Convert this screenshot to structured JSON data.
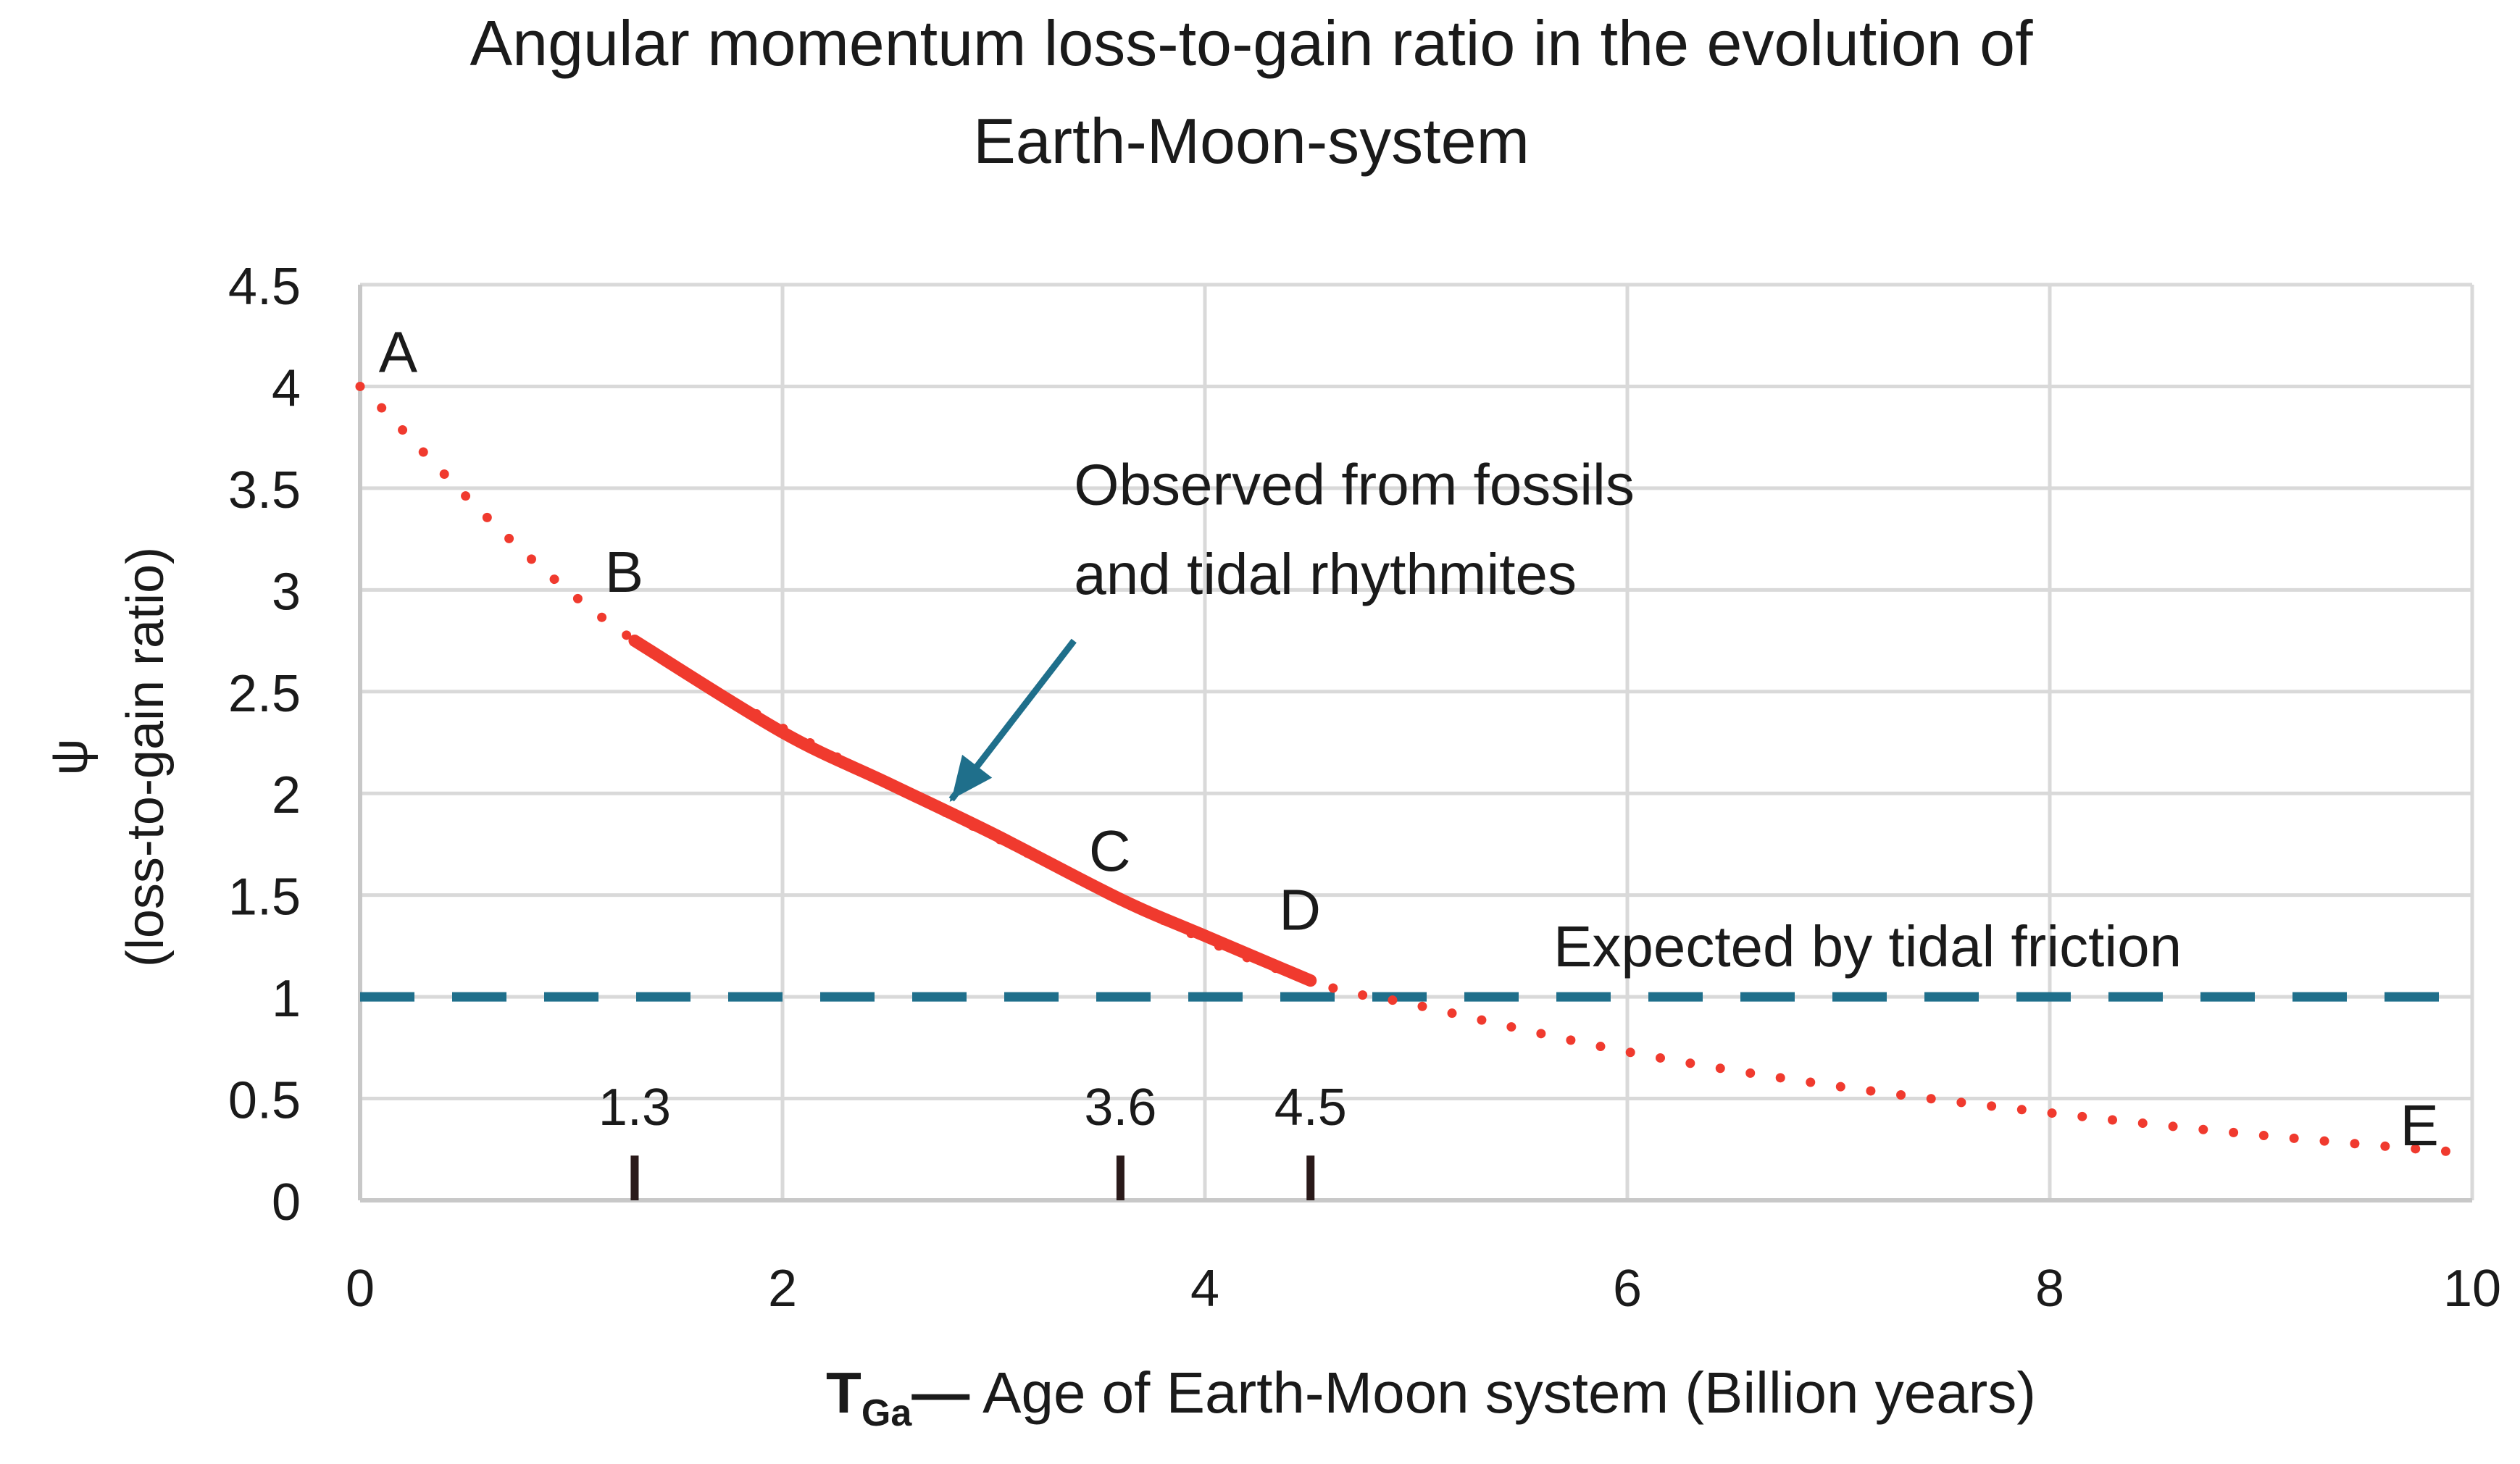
{
  "chart_data": {
    "type": "line",
    "title_line1": "Angular momentum loss-to-gain ratio  in the evolution of",
    "title_line2": "Earth-Moon-system",
    "ylabel_symbol": "ψ",
    "ylabel": "(loss-to-gain ratio)",
    "xlabel_prefix": "T",
    "xlabel_subscript": "Ga",
    "xlabel_dash": "—",
    "xlabel": " Age of Earth-Moon system (Billion years)",
    "xlim": [
      0,
      10
    ],
    "ylim": [
      0,
      4.5
    ],
    "x_ticks": [
      0,
      2,
      4,
      6,
      8,
      10
    ],
    "x_tick_labels": [
      "0",
      "2",
      "4",
      "6",
      "8",
      "10"
    ],
    "y_ticks": [
      0,
      0.5,
      1,
      1.5,
      2,
      2.5,
      3,
      3.5,
      4,
      4.5
    ],
    "y_tick_labels": [
      "0",
      "0.5",
      "1",
      "1.5",
      "2",
      "2.5",
      "3",
      "3.5",
      "4",
      "4.5"
    ],
    "grid": true,
    "series": [
      {
        "style": "dotted",
        "color": "#f03a2e",
        "points": [
          [
            0,
            4.0
          ],
          [
            1.3,
            2.75
          ],
          [
            3.6,
            1.48
          ],
          [
            4.5,
            1.08
          ],
          [
            5.0,
            0.96
          ],
          [
            6.0,
            0.73
          ],
          [
            7.0,
            0.56
          ],
          [
            8.0,
            0.43
          ],
          [
            9.0,
            0.32
          ],
          [
            10.0,
            0.23
          ]
        ]
      },
      {
        "name": "Observed from fossils and tidal rhythmites",
        "style": "solid",
        "color": "#f03a2e",
        "points": [
          [
            1.3,
            2.75
          ],
          [
            2.0,
            2.3
          ],
          [
            2.5,
            2.05
          ],
          [
            3.0,
            1.8
          ],
          [
            3.6,
            1.48
          ],
          [
            4.0,
            1.3
          ],
          [
            4.5,
            1.08
          ]
        ]
      },
      {
        "name": "Expected by tidal friction",
        "style": "dashed",
        "color": "#1f6f8b",
        "points": [
          [
            0,
            1.0
          ],
          [
            10,
            1.0
          ]
        ]
      }
    ],
    "point_labels": [
      {
        "text": "A",
        "x": 0.18,
        "y": 4.17
      },
      {
        "text": "B",
        "x": 1.25,
        "y": 3.09
      },
      {
        "text": "C",
        "x": 3.55,
        "y": 1.72
      },
      {
        "text": "D",
        "x": 4.45,
        "y": 1.43
      },
      {
        "text": "E",
        "x": 9.75,
        "y": 0.37
      }
    ],
    "annotations": [
      {
        "text": "Observed from fossils",
        "x": 3.38,
        "y": 3.52
      },
      {
        "text": "and tidal rhythmites",
        "x": 3.38,
        "y": 3.08
      },
      {
        "text": "Expected by tidal friction",
        "x": 5.65,
        "y": 1.25
      }
    ],
    "arrow": {
      "color": "#1f6f8b",
      "from": [
        3.38,
        2.75
      ],
      "to": [
        2.8,
        1.97
      ]
    },
    "age_markers": [
      {
        "label": "1.3",
        "x": 1.3
      },
      {
        "label": "3.6",
        "x": 3.6
      },
      {
        "label": "4.5",
        "x": 4.5
      }
    ],
    "marker_range": [
      0,
      0.22
    ],
    "marker_label_y": 0.37
  }
}
